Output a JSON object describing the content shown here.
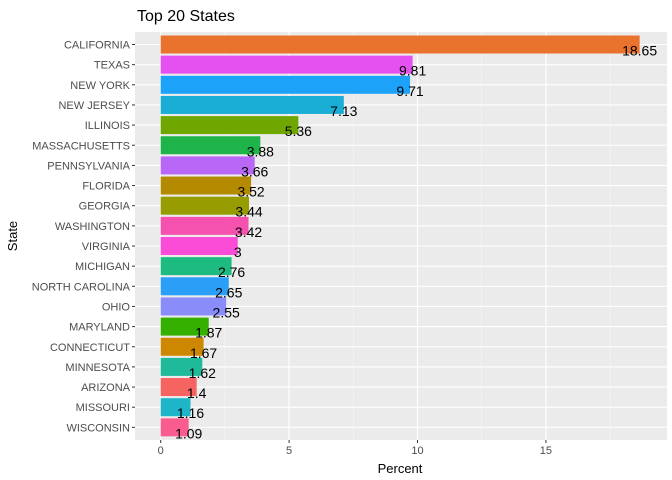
{
  "chart_data": {
    "type": "bar",
    "orientation": "horizontal",
    "title": "Top 20 States",
    "xlabel": "Percent",
    "ylabel": "State",
    "xlim": [
      0,
      19.6
    ],
    "x_ticks": [
      0,
      5,
      10,
      15
    ],
    "grid": true,
    "legend": "none",
    "categories": [
      "CALIFORNIA",
      "TEXAS",
      "NEW YORK",
      "NEW JERSEY",
      "ILLINOIS",
      "MASSACHUSETTS",
      "PENNSYLVANIA",
      "FLORIDA",
      "GEORGIA",
      "WASHINGTON",
      "VIRGINIA",
      "MICHIGAN",
      "NORTH CAROLINA",
      "OHIO",
      "MARYLAND",
      "CONNECTICUT",
      "MINNESOTA",
      "ARIZONA",
      "MISSOURI",
      "WISCONSIN"
    ],
    "values": [
      18.65,
      9.81,
      9.71,
      7.13,
      5.36,
      3.88,
      3.66,
      3.52,
      3.44,
      3.42,
      3,
      2.76,
      2.65,
      2.55,
      1.87,
      1.67,
      1.62,
      1.4,
      1.16,
      1.09
    ],
    "value_labels": [
      "18.65",
      "9.81",
      "9.71",
      "7.13",
      "5.36",
      "3.88",
      "3.66",
      "3.52",
      "3.44",
      "3.42",
      "3",
      "2.76",
      "2.65",
      "2.55",
      "1.87",
      "1.67",
      "1.62",
      "1.4",
      "1.16",
      "1.09"
    ],
    "colors": [
      "#E9722D",
      "#E550F0",
      "#1CA2F8",
      "#1AAED6",
      "#6FA700",
      "#1EB44A",
      "#B867F7",
      "#B48B00",
      "#979C00",
      "#F551AE",
      "#FB4CD8",
      "#1EBB80",
      "#2B9FF7",
      "#8A8CF9",
      "#35B000",
      "#CE8700",
      "#1FBA99",
      "#F66462",
      "#1EB5C8",
      "#FB5C8F"
    ]
  }
}
